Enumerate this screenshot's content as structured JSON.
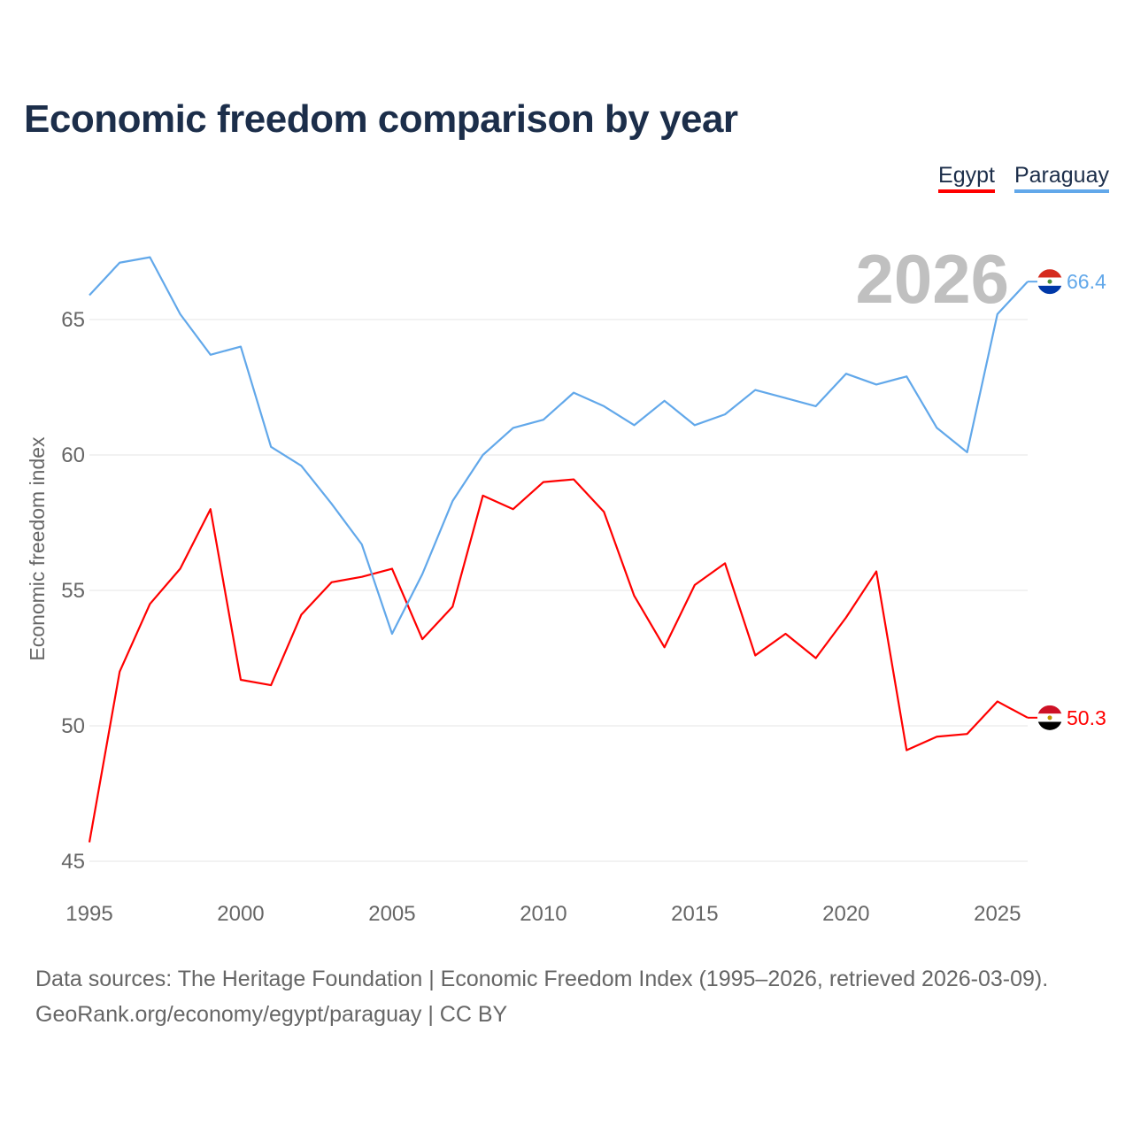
{
  "title": "Economic freedom comparison by year",
  "footer": {
    "line1": "Data sources: The Heritage Foundation | Economic Freedom Index (1995–2026, retrieved 2026-03-09).",
    "line2": "GeoRank.org/economy/egypt/paraguay | CC BY"
  },
  "chart_data": {
    "type": "line",
    "title": "Economic freedom comparison by year",
    "xlabel": "",
    "ylabel": "Economic freedom index",
    "year_label": "2026",
    "x": [
      1995,
      1996,
      1997,
      1998,
      1999,
      2000,
      2001,
      2002,
      2003,
      2004,
      2005,
      2006,
      2007,
      2008,
      2009,
      2010,
      2011,
      2012,
      2013,
      2014,
      2015,
      2016,
      2017,
      2018,
      2019,
      2020,
      2021,
      2022,
      2023,
      2024,
      2025,
      2026
    ],
    "xlim": [
      1995,
      2026
    ],
    "ylim": [
      45,
      67.8
    ],
    "xticks": [
      "1995",
      "2000",
      "2005",
      "2010",
      "2015",
      "2020",
      "2025"
    ],
    "yticks": [
      "45",
      "50",
      "55",
      "60",
      "65"
    ],
    "grid": true,
    "legend_position": "top-right",
    "series": [
      {
        "name": "Egypt",
        "color": "#ff0000",
        "end_label": "50.3",
        "flag": "egypt-flag",
        "values": [
          45.7,
          52.0,
          54.5,
          55.8,
          58.0,
          51.7,
          51.5,
          54.1,
          55.3,
          55.5,
          55.8,
          53.2,
          54.4,
          58.5,
          58.0,
          59.0,
          59.1,
          57.9,
          54.8,
          52.9,
          55.2,
          56.0,
          52.6,
          53.4,
          52.5,
          54.0,
          55.7,
          49.1,
          49.6,
          49.7,
          50.9,
          50.3
        ]
      },
      {
        "name": "Paraguay",
        "color": "#62a8ea",
        "end_label": "66.4",
        "flag": "paraguay-flag",
        "values": [
          65.9,
          67.1,
          67.3,
          65.2,
          63.7,
          64.0,
          60.3,
          59.6,
          58.2,
          56.7,
          53.4,
          55.6,
          58.3,
          60.0,
          61.0,
          61.3,
          62.3,
          61.8,
          61.1,
          62.0,
          61.1,
          61.5,
          62.4,
          62.1,
          61.8,
          63.0,
          62.6,
          62.9,
          61.0,
          60.1,
          65.2,
          66.4
        ]
      }
    ]
  }
}
